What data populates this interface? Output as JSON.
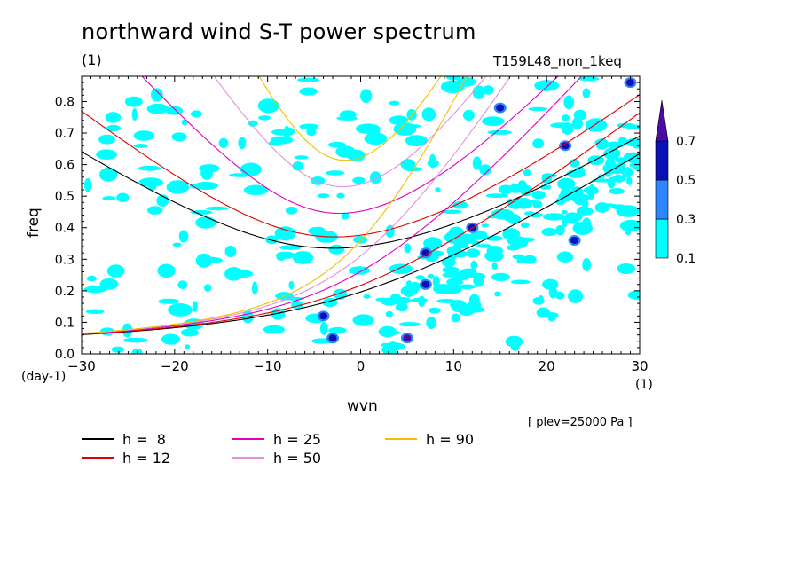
{
  "header": {
    "title": "northward wind S-T power spectrum",
    "unit_left": "(1)",
    "run_label": "T159L48_non_1keq"
  },
  "footer": {
    "level_note": "[ plev=25000 Pa ]"
  },
  "chart_data": {
    "type": "contour",
    "xlabel": "wvn",
    "ylabel": "freq",
    "x_unit": "(1)",
    "y_unit": "(day-1)",
    "xlim": [
      -30,
      30
    ],
    "ylim": [
      0,
      0.88
    ],
    "x_ticks": [
      -30,
      -20,
      -10,
      0,
      10,
      20,
      30
    ],
    "y_ticks": [
      0.0,
      0.1,
      0.2,
      0.3,
      0.4,
      0.5,
      0.6,
      0.7,
      0.8
    ],
    "colorbar": {
      "levels": [
        "0.1",
        "0.3",
        "0.5",
        "0.7"
      ],
      "colors": [
        "#00ffff",
        "#2e86ff",
        "#0a10b8",
        "#4a0aa8"
      ]
    },
    "legend": [
      {
        "label": "h =  8",
        "color": "#000000"
      },
      {
        "label": "h = 12",
        "color": "#e00000"
      },
      {
        "label": "h = 25",
        "color": "#e000c0"
      },
      {
        "label": "h = 50",
        "color": "#e090e0"
      },
      {
        "label": "h = 90",
        "color": "#f0c000"
      }
    ],
    "curves": [
      {
        "h": 8,
        "color": "#000000",
        "family": "n1-westward-inertio-gravity"
      },
      {
        "h": 12,
        "color": "#e00000",
        "family": "n1-westward-inertio-gravity"
      },
      {
        "h": 25,
        "color": "#e000c0",
        "family": "n1-westward-inertio-gravity"
      },
      {
        "h": 50,
        "color": "#e090e0",
        "family": "n1-westward-inertio-gravity"
      },
      {
        "h": 90,
        "color": "#f0c000",
        "family": "n1-westward-inertio-gravity"
      },
      {
        "h": 8,
        "color": "#000000",
        "family": "mixed-rossby-gravity"
      },
      {
        "h": 12,
        "color": "#e00000",
        "family": "mixed-rossby-gravity"
      },
      {
        "h": 25,
        "color": "#e000c0",
        "family": "mixed-rossby-gravity"
      },
      {
        "h": 50,
        "color": "#e090e0",
        "family": "mixed-rossby-gravity"
      },
      {
        "h": 90,
        "color": "#f0c000",
        "family": "mixed-rossby-gravity"
      }
    ],
    "features": [
      {
        "x": 5,
        "y": 0.05,
        "level": "0.7"
      },
      {
        "x": -4,
        "y": 0.12,
        "level": "0.5"
      },
      {
        "x": 7,
        "y": 0.32,
        "level": "0.5"
      },
      {
        "x": 7,
        "y": 0.22,
        "level": "0.5"
      },
      {
        "x": 12,
        "y": 0.4,
        "level": "0.5"
      },
      {
        "x": 15,
        "y": 0.78,
        "level": "0.5"
      },
      {
        "x": 22,
        "y": 0.66,
        "level": "0.5"
      },
      {
        "x": 29,
        "y": 0.86,
        "level": "0.5"
      },
      {
        "x": -3,
        "y": 0.05,
        "level": "0.5"
      },
      {
        "x": 23,
        "y": 0.36,
        "level": "0.5"
      }
    ]
  }
}
